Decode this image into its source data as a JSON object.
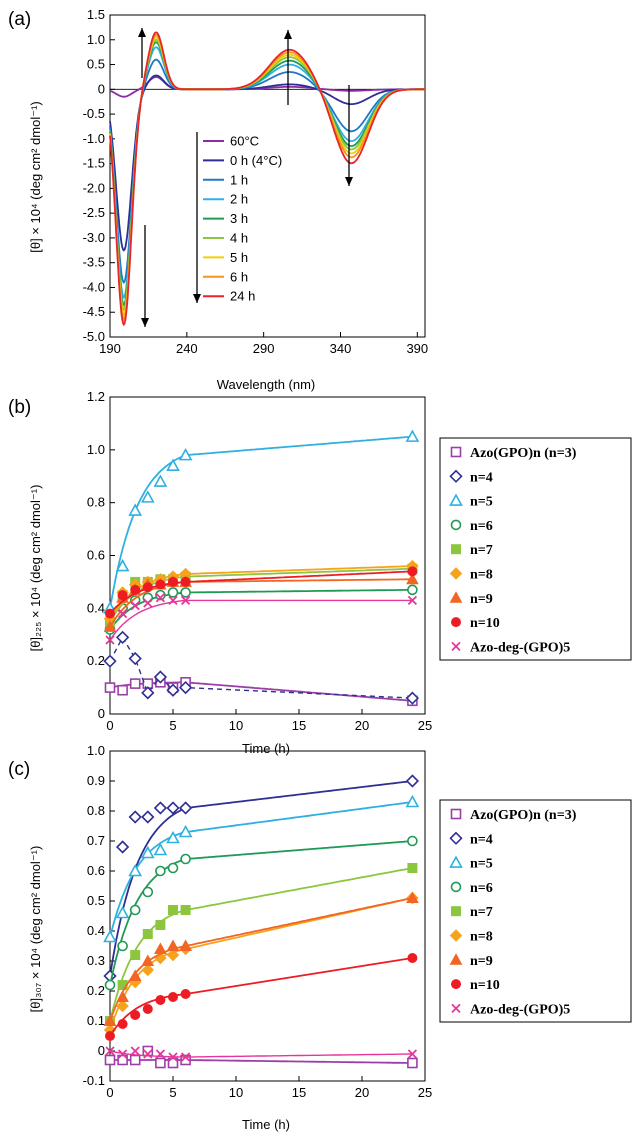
{
  "panel_labels": [
    "(a)",
    "(b)",
    "(c)"
  ],
  "legend_a": [
    "60°C",
    "0 h (4°C)",
    "1 h",
    "2 h",
    "3 h",
    "4 h",
    "5 h",
    "6 h",
    "24 h"
  ],
  "legend_bc": [
    "Azo(GPO)n (n=3)",
    "n=4",
    "n=5",
    "n=6",
    "n=7",
    "n=8",
    "n=9",
    "n=10",
    "Azo-deg-(GPO)5"
  ],
  "chart_data": [
    {
      "type": "line",
      "title": "",
      "xlabel": "Wavelength (nm)",
      "ylabel": "[θ] × 10⁴ (deg cm² dmol⁻¹)",
      "xlim": [
        190,
        395
      ],
      "ylim": [
        -5.0,
        1.5
      ],
      "xticks": [
        190,
        240,
        290,
        340,
        390
      ],
      "yticks": [
        1.5,
        1.0,
        0.5,
        0,
        -0.5,
        -1.0,
        -1.5,
        -2.0,
        -2.5,
        -3.0,
        -3.5,
        -4.0,
        -4.5,
        -5.0
      ],
      "legend_position": "center",
      "series": [
        {
          "name": "60°C",
          "color": "#8e2aa8",
          "extremes": {
            "min_at_198": -0.15,
            "max_at_205": 0.25,
            "at_307": 0.05,
            "at_347": -0.03
          }
        },
        {
          "name": "0 h (4°C)",
          "color": "#2e2f92",
          "extremes": {
            "min_at_198": -3.25,
            "max_at_215": 0.28,
            "at_307": 0.1,
            "at_347": -0.3
          }
        },
        {
          "name": "1 h",
          "color": "#1e78c8",
          "extremes": {
            "min_at_198": -3.9,
            "max_at_220": 0.6,
            "at_307": 0.35,
            "at_347": -0.85
          }
        },
        {
          "name": "2 h",
          "color": "#2fb0e0",
          "extremes": {
            "min_at_198": -4.2,
            "max_at_220": 0.85,
            "at_307": 0.5,
            "at_347": -1.05
          }
        },
        {
          "name": "3 h",
          "color": "#1f9a55",
          "extremes": {
            "min_at_198": -4.35,
            "max_at_220": 0.95,
            "at_307": 0.58,
            "at_347": -1.15
          }
        },
        {
          "name": "4 h",
          "color": "#8cc63f",
          "extremes": {
            "min_at_198": -4.45,
            "max_at_220": 1.0,
            "at_307": 0.65,
            "at_347": -1.22
          }
        },
        {
          "name": "5 h",
          "color": "#f0d000",
          "extremes": {
            "min_at_198": -4.55,
            "max_at_220": 1.05,
            "at_307": 0.7,
            "at_347": -1.3
          }
        },
        {
          "name": "6 h",
          "color": "#f7941d",
          "extremes": {
            "min_at_198": -4.65,
            "max_at_220": 1.1,
            "at_307": 0.75,
            "at_347": -1.38
          }
        },
        {
          "name": "24 h",
          "color": "#e8262a",
          "extremes": {
            "min_at_198": -4.75,
            "max_at_220": 1.15,
            "at_307": 0.8,
            "at_347": -1.5
          }
        }
      ]
    },
    {
      "type": "scatter",
      "title": "",
      "xlabel": "Time (h)",
      "ylabel": "[θ]₂₂₅ × 10⁴ (deg cm² dmol⁻¹)",
      "xlim": [
        0,
        25
      ],
      "ylim": [
        0,
        1.2
      ],
      "xticks": [
        0,
        5,
        10,
        15,
        20,
        25
      ],
      "yticks": [
        0,
        0.2,
        0.4,
        0.6,
        0.8,
        1.0,
        1.2
      ],
      "legend_position": "right",
      "x": [
        0,
        1,
        2,
        3,
        4,
        5,
        6,
        24
      ],
      "series": [
        {
          "name": "Azo(GPO)n (n=3)",
          "marker": "square",
          "color": "#9b3fa8",
          "values": [
            0.1,
            0.09,
            0.115,
            0.115,
            0.12,
            0.1,
            0.12,
            0.05
          ]
        },
        {
          "name": "n=4",
          "marker": "diamond",
          "color": "#2e2f92",
          "dashed": true,
          "values": [
            0.2,
            0.29,
            0.21,
            0.08,
            0.14,
            0.09,
            0.1,
            0.06
          ]
        },
        {
          "name": "n=5",
          "marker": "triangle",
          "color": "#2fb0e0",
          "values": [
            0.4,
            0.56,
            0.77,
            0.82,
            0.88,
            0.94,
            0.98,
            1.05
          ]
        },
        {
          "name": "n=6",
          "marker": "circle",
          "color": "#1f9a55",
          "values": [
            0.32,
            0.4,
            0.43,
            0.44,
            0.45,
            0.46,
            0.46,
            0.47
          ]
        },
        {
          "name": "n=7",
          "marker": "filled-square",
          "color": "#8cc63f",
          "values": [
            0.35,
            0.45,
            0.5,
            0.5,
            0.51,
            0.51,
            0.52,
            0.55
          ]
        },
        {
          "name": "n=8",
          "marker": "filled-diamond",
          "color": "#f7a21b",
          "values": [
            0.36,
            0.46,
            0.49,
            0.5,
            0.51,
            0.52,
            0.53,
            0.56
          ]
        },
        {
          "name": "n=9",
          "marker": "filled-triangle",
          "color": "#f26522",
          "values": [
            0.33,
            0.44,
            0.47,
            0.49,
            0.49,
            0.5,
            0.5,
            0.51
          ]
        },
        {
          "name": "n=10",
          "marker": "filled-circle",
          "color": "#ed1c24",
          "values": [
            0.38,
            0.45,
            0.47,
            0.48,
            0.49,
            0.5,
            0.5,
            0.54
          ]
        },
        {
          "name": "Azo-deg-(GPO)5",
          "marker": "x",
          "color": "#e5379a",
          "values": [
            0.28,
            0.38,
            0.41,
            0.42,
            0.44,
            0.43,
            0.43,
            0.43
          ]
        }
      ]
    },
    {
      "type": "scatter",
      "title": "",
      "xlabel": "Time (h)",
      "ylabel": "[θ]₃₀₇ × 10⁴ (deg cm² dmol⁻¹)",
      "xlim": [
        0,
        25
      ],
      "ylim": [
        -0.1,
        1.0
      ],
      "xticks": [
        0,
        5,
        10,
        15,
        20,
        25
      ],
      "yticks": [
        -0.1,
        0,
        0.1,
        0.2,
        0.3,
        0.4,
        0.5,
        0.6,
        0.7,
        0.8,
        0.9,
        1.0
      ],
      "legend_position": "right",
      "x": [
        0,
        1,
        2,
        3,
        4,
        5,
        6,
        24
      ],
      "series": [
        {
          "name": "Azo(GPO)n (n=3)",
          "marker": "square",
          "color": "#9b3fa8",
          "values": [
            -0.03,
            -0.03,
            -0.03,
            0.0,
            -0.04,
            -0.04,
            -0.03,
            -0.04
          ]
        },
        {
          "name": "n=4",
          "marker": "diamond",
          "color": "#2e2f92",
          "values": [
            0.25,
            0.68,
            0.78,
            0.78,
            0.81,
            0.81,
            0.81,
            0.9
          ]
        },
        {
          "name": "n=5",
          "marker": "triangle",
          "color": "#2fb0e0",
          "values": [
            0.38,
            0.46,
            0.6,
            0.66,
            0.67,
            0.71,
            0.73,
            0.83
          ]
        },
        {
          "name": "n=6",
          "marker": "circle",
          "color": "#1f9a55",
          "values": [
            0.22,
            0.35,
            0.47,
            0.53,
            0.6,
            0.61,
            0.64,
            0.7
          ]
        },
        {
          "name": "n=7",
          "marker": "filled-square",
          "color": "#8cc63f",
          "values": [
            0.1,
            0.22,
            0.32,
            0.39,
            0.42,
            0.47,
            0.47,
            0.61
          ]
        },
        {
          "name": "n=8",
          "marker": "filled-diamond",
          "color": "#f7a21b",
          "values": [
            0.07,
            0.15,
            0.23,
            0.27,
            0.31,
            0.32,
            0.34,
            0.51
          ]
        },
        {
          "name": "n=9",
          "marker": "filled-triangle",
          "color": "#f26522",
          "values": [
            0.1,
            0.18,
            0.25,
            0.3,
            0.34,
            0.35,
            0.35,
            0.51
          ]
        },
        {
          "name": "n=10",
          "marker": "filled-circle",
          "color": "#ed1c24",
          "values": [
            0.05,
            0.09,
            0.12,
            0.14,
            0.17,
            0.18,
            0.19,
            0.31
          ]
        },
        {
          "name": "Azo-deg-(GPO)5",
          "marker": "x",
          "color": "#e5379a",
          "values": [
            0.0,
            -0.01,
            0.0,
            -0.01,
            -0.01,
            -0.02,
            -0.02,
            -0.01
          ]
        }
      ]
    }
  ]
}
